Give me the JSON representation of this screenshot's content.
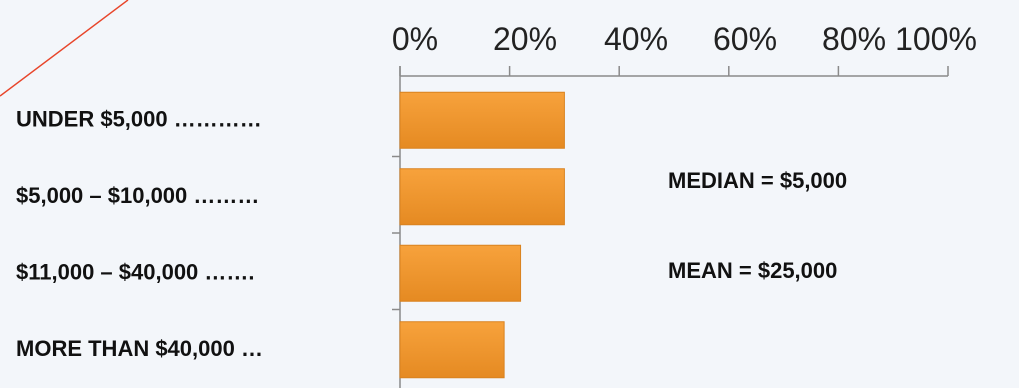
{
  "colors": {
    "bar_top": "#f7a23c",
    "bar_bottom": "#e58a22",
    "bar_edge": "#d9821f",
    "axis": "#8a8a8a",
    "decor_line": "#e8452a"
  },
  "chart_data": {
    "type": "bar",
    "orientation": "horizontal",
    "categories": [
      "UNDER $5,000 …………",
      "$5,000 – $10,000 ………",
      "$11,000 – $40,000 …….",
      "MORE THAN $40,000 …"
    ],
    "values": [
      30,
      30,
      22,
      19
    ],
    "xlim": [
      0,
      100
    ],
    "x_ticks": [
      "0%",
      "20%",
      "40%",
      "60%",
      "80%",
      "100%"
    ],
    "x_axis_position": "top",
    "grid": false,
    "legend": "none",
    "annotations": [
      "MEDIAN = $5,000",
      "MEAN = $25,000"
    ]
  }
}
